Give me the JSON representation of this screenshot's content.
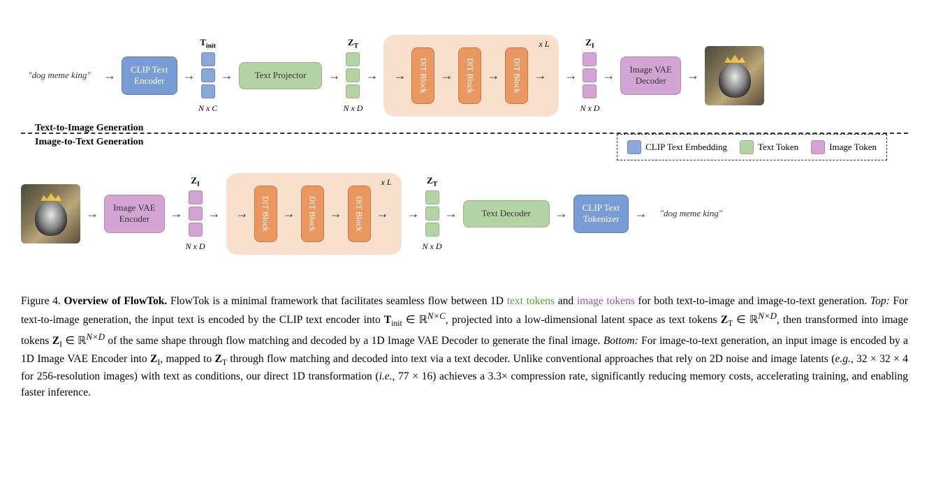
{
  "colors": {
    "blue_fill": "#7a9cd4",
    "blue_border": "#5a7cb4",
    "green_fill": "#b5d4a5",
    "green_border": "#95b485",
    "purple_fill": "#d4a5d4",
    "purple_border": "#b485b4",
    "orange_fill": "#e89860",
    "orange_border": "#c87840",
    "orange_bg": "#f8e0cc",
    "text_tokens": "#5a9c3a",
    "image_tokens": "#a050a0",
    "background": "#ffffff"
  },
  "typography": {
    "body_family": "Georgia, Times New Roman, serif",
    "caption_fontsize": 15.5,
    "block_fontsize": 13,
    "label_fontsize": 13
  },
  "diagram": {
    "top": {
      "input_text": "\"dog meme king\"",
      "blocks": {
        "encoder": "CLIP Text\nEncoder",
        "projector": "Text Projector",
        "dit": "DiT Block",
        "dit_repeat": "x L",
        "decoder": "Image VAE\nDecoder"
      },
      "tokens": {
        "t_init": {
          "top": "T",
          "top_sub": "init",
          "bot": "N x C",
          "color": "blue"
        },
        "z_t": {
          "top": "Z",
          "top_sub": "T",
          "bot": "N x D",
          "color": "green"
        },
        "z_i": {
          "top": "Z",
          "top_sub": "I",
          "bot": "N x D",
          "color": "purple"
        }
      }
    },
    "bottom": {
      "output_text": "\"dog meme king\"",
      "blocks": {
        "encoder": "Image VAE\nEncoder",
        "dit": "DiT Block",
        "dit_repeat": "x L",
        "decoder": "Text Decoder",
        "tokenizer": "CLIP Text\nTokenizer"
      },
      "tokens": {
        "z_i": {
          "top": "Z",
          "top_sub": "I",
          "bot": "N x D",
          "color": "purple"
        },
        "z_t": {
          "top": "Z",
          "top_sub": "T",
          "bot": "N x D",
          "color": "green"
        }
      }
    },
    "section_labels": {
      "top": "Text-to-Image Generation",
      "bottom": "Image-to-Text Generation"
    },
    "legend": {
      "clip": "CLIP Text Embedding",
      "text_token": "Text Token",
      "image_token": "Image Token"
    }
  },
  "caption": {
    "fig_label": "Figure 4. ",
    "title": "Overview of FlowTok.",
    "body1": " FlowTok is a minimal framework that facilitates seamless flow between 1D ",
    "text_tokens": "text tokens",
    "body2": " and ",
    "image_tokens": "image tokens",
    "body3": " for both text-to-image and image-to-text generation. ",
    "top_label": "Top:",
    "body4": " For text-to-image generation, the input text is encoded by the CLIP text encoder into ",
    "eq1": "T",
    "eq1_sub": "init",
    "eq1_rest": " ∈ ℝ",
    "eq1_sup": "N×C",
    "body5": ", projected into a low-dimensional latent space as text tokens ",
    "eq2": "Z",
    "eq2_sub": "T",
    "eq2_rest": " ∈ ℝ",
    "eq2_sup": "N×D",
    "body6": ", then transformed into image tokens ",
    "eq3": "Z",
    "eq3_sub": "I",
    "eq3_rest": " ∈ ℝ",
    "eq3_sup": "N×D",
    "body7": " of the same shape through flow matching and decoded by a 1D Image VAE Decoder to generate the final image. ",
    "bottom_label": "Bottom:",
    "body8": " For image-to-text generation, an input image is encoded by a 1D Image VAE Encoder into ",
    "eq4": "Z",
    "eq4_sub": "I",
    "body9": ", mapped to ",
    "eq5": "Z",
    "eq5_sub": "T",
    "body10": " through flow matching and decoded into text via a text decoder. Unlike conventional approaches that rely on 2D noise and image latents (",
    "eg": "e.g.",
    "body11": ", 32 × 32 × 4 for 256-resolution images) with text as conditions, our direct 1D transformation (",
    "ie": "i.e.",
    "body12": ", 77 × 16) achieves a 3.3× compression rate, significantly reducing memory costs, accelerating training, and enabling faster inference."
  }
}
